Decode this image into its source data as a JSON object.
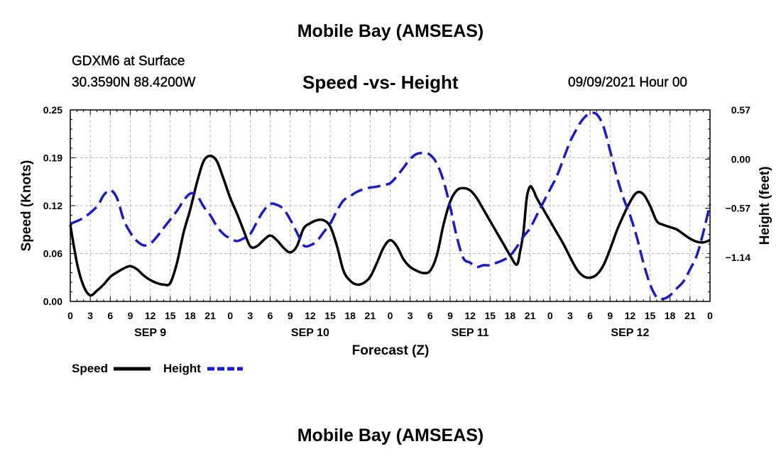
{
  "header": {
    "title": "Mobile Bay (AMSEAS)",
    "station": "GDXM6 at Surface",
    "coords": "30.3590N  88.4200W",
    "subtitle": "Speed -vs- Height",
    "datetime": "09/09/2021 Hour 00"
  },
  "footer": {
    "title": "Mobile Bay (AMSEAS)"
  },
  "chart_data": {
    "type": "line",
    "title": "Speed -vs- Height",
    "xlabel": "Forecast (Z)",
    "ylabel": "Speed (Knots)",
    "y2label": "Height (feet)",
    "x_unit": "forecast hour",
    "xlim": [
      0,
      96
    ],
    "ylim": [
      0,
      0.25
    ],
    "y2lim": [
      -1.65,
      0.57
    ],
    "grid": true,
    "legend_position": "bottom-left",
    "x_ticks": [
      {
        "h": 0,
        "label": "0"
      },
      {
        "h": 3,
        "label": "3"
      },
      {
        "h": 6,
        "label": "6"
      },
      {
        "h": 9,
        "label": "9"
      },
      {
        "h": 12,
        "label": "12"
      },
      {
        "h": 15,
        "label": "15"
      },
      {
        "h": 18,
        "label": "18"
      },
      {
        "h": 21,
        "label": "21"
      },
      {
        "h": 24,
        "label": "0"
      },
      {
        "h": 27,
        "label": "3"
      },
      {
        "h": 30,
        "label": "6"
      },
      {
        "h": 33,
        "label": "9"
      },
      {
        "h": 36,
        "label": "12"
      },
      {
        "h": 39,
        "label": "15"
      },
      {
        "h": 42,
        "label": "18"
      },
      {
        "h": 45,
        "label": "21"
      },
      {
        "h": 48,
        "label": "0"
      },
      {
        "h": 51,
        "label": "3"
      },
      {
        "h": 54,
        "label": "6"
      },
      {
        "h": 57,
        "label": "9"
      },
      {
        "h": 60,
        "label": "12"
      },
      {
        "h": 63,
        "label": "15"
      },
      {
        "h": 66,
        "label": "18"
      },
      {
        "h": 69,
        "label": "21"
      },
      {
        "h": 72,
        "label": "0"
      },
      {
        "h": 75,
        "label": "3"
      },
      {
        "h": 78,
        "label": "6"
      },
      {
        "h": 81,
        "label": "9"
      },
      {
        "h": 84,
        "label": "12"
      },
      {
        "h": 87,
        "label": "15"
      },
      {
        "h": 90,
        "label": "18"
      },
      {
        "h": 93,
        "label": "21"
      },
      {
        "h": 96,
        "label": "0"
      }
    ],
    "day_labels": [
      {
        "h": 12,
        "label": "SEP 9"
      },
      {
        "h": 36,
        "label": "SEP 10"
      },
      {
        "h": 60,
        "label": "SEP 11"
      },
      {
        "h": 84,
        "label": "SEP 12"
      }
    ],
    "y_ticks": [
      {
        "v": 0.0,
        "label": "0.00"
      },
      {
        "v": 0.0625,
        "label": "0.06"
      },
      {
        "v": 0.125,
        "label": "0.12"
      },
      {
        "v": 0.1875,
        "label": "0.19"
      },
      {
        "v": 0.25,
        "label": "0.25"
      }
    ],
    "y2_ticks": [
      {
        "v": 0.57,
        "label": "0.57"
      },
      {
        "v": 0.0,
        "label": "0.00"
      },
      {
        "v": -0.57,
        "label": "−0.57"
      },
      {
        "v": -1.14,
        "label": "−1.14"
      }
    ],
    "series": [
      {
        "name": "Speed",
        "axis": "left",
        "color": "#000000",
        "dash": "solid",
        "points": [
          [
            0,
            0.1
          ],
          [
            1,
            0.05
          ],
          [
            2,
            0.02
          ],
          [
            3,
            0.008
          ],
          [
            4,
            0.014
          ],
          [
            5,
            0.022
          ],
          [
            6,
            0.032
          ],
          [
            7,
            0.038
          ],
          [
            8,
            0.043
          ],
          [
            9,
            0.046
          ],
          [
            10,
            0.042
          ],
          [
            11,
            0.034
          ],
          [
            12,
            0.028
          ],
          [
            13,
            0.024
          ],
          [
            14,
            0.022
          ],
          [
            15,
            0.024
          ],
          [
            16,
            0.05
          ],
          [
            17,
            0.09
          ],
          [
            18,
            0.12
          ],
          [
            19,
            0.155
          ],
          [
            20,
            0.183
          ],
          [
            21,
            0.19
          ],
          [
            22,
            0.183
          ],
          [
            23,
            0.16
          ],
          [
            24,
            0.135
          ],
          [
            25,
            0.115
          ],
          [
            26,
            0.093
          ],
          [
            27,
            0.072
          ],
          [
            28,
            0.072
          ],
          [
            29,
            0.08
          ],
          [
            30,
            0.086
          ],
          [
            31,
            0.08
          ],
          [
            32,
            0.07
          ],
          [
            33,
            0.064
          ],
          [
            34,
            0.072
          ],
          [
            35,
            0.095
          ],
          [
            36,
            0.102
          ],
          [
            37,
            0.106
          ],
          [
            38,
            0.106
          ],
          [
            39,
            0.098
          ],
          [
            40,
            0.073
          ],
          [
            41,
            0.04
          ],
          [
            42,
            0.027
          ],
          [
            43,
            0.022
          ],
          [
            44,
            0.024
          ],
          [
            45,
            0.032
          ],
          [
            46,
            0.05
          ],
          [
            47,
            0.07
          ],
          [
            48,
            0.08
          ],
          [
            49,
            0.072
          ],
          [
            50,
            0.055
          ],
          [
            51,
            0.045
          ],
          [
            52,
            0.04
          ],
          [
            53,
            0.037
          ],
          [
            54,
            0.04
          ],
          [
            55,
            0.06
          ],
          [
            56,
            0.1
          ],
          [
            57,
            0.13
          ],
          [
            58,
            0.145
          ],
          [
            59,
            0.148
          ],
          [
            60,
            0.145
          ],
          [
            61,
            0.135
          ],
          [
            62,
            0.12
          ],
          [
            63,
            0.105
          ],
          [
            64,
            0.09
          ],
          [
            65,
            0.075
          ],
          [
            66,
            0.06
          ],
          [
            67,
            0.048
          ],
          [
            67.5,
            0.065
          ],
          [
            68,
            0.09
          ],
          [
            68.5,
            0.135
          ],
          [
            69,
            0.15
          ],
          [
            69.5,
            0.145
          ],
          [
            70,
            0.135
          ],
          [
            71,
            0.12
          ],
          [
            72,
            0.105
          ],
          [
            73,
            0.09
          ],
          [
            74,
            0.075
          ],
          [
            75,
            0.058
          ],
          [
            76,
            0.042
          ],
          [
            77,
            0.033
          ],
          [
            78,
            0.031
          ],
          [
            79,
            0.035
          ],
          [
            80,
            0.047
          ],
          [
            81,
            0.068
          ],
          [
            82,
            0.092
          ],
          [
            83,
            0.112
          ],
          [
            84,
            0.13
          ],
          [
            85,
            0.142
          ],
          [
            86,
            0.14
          ],
          [
            87,
            0.125
          ],
          [
            88,
            0.105
          ],
          [
            89,
            0.1
          ],
          [
            90,
            0.097
          ],
          [
            91,
            0.094
          ],
          [
            92,
            0.088
          ],
          [
            93,
            0.082
          ],
          [
            94,
            0.078
          ],
          [
            95,
            0.077
          ],
          [
            96,
            0.08
          ]
        ]
      },
      {
        "name": "Height",
        "axis": "right",
        "color": "#1a1acc",
        "dash": "dashed",
        "points": [
          [
            0,
            -0.75
          ],
          [
            2,
            -0.68
          ],
          [
            4,
            -0.55
          ],
          [
            5,
            -0.42
          ],
          [
            6,
            -0.36
          ],
          [
            7,
            -0.45
          ],
          [
            8,
            -0.7
          ],
          [
            9,
            -0.85
          ],
          [
            10,
            -0.95
          ],
          [
            11,
            -1.0
          ],
          [
            12,
            -0.98
          ],
          [
            13,
            -0.9
          ],
          [
            14,
            -0.8
          ],
          [
            16,
            -0.6
          ],
          [
            17,
            -0.48
          ],
          [
            18,
            -0.4
          ],
          [
            19,
            -0.42
          ],
          [
            20,
            -0.55
          ],
          [
            21,
            -0.65
          ],
          [
            22,
            -0.78
          ],
          [
            23,
            -0.87
          ],
          [
            24,
            -0.92
          ],
          [
            25,
            -0.95
          ],
          [
            26,
            -0.92
          ],
          [
            27,
            -0.87
          ],
          [
            28,
            -0.73
          ],
          [
            29,
            -0.6
          ],
          [
            30,
            -0.52
          ],
          [
            31,
            -0.53
          ],
          [
            32,
            -0.58
          ],
          [
            33,
            -0.7
          ],
          [
            34,
            -0.85
          ],
          [
            35,
            -1.0
          ],
          [
            36,
            -1.0
          ],
          [
            37,
            -0.95
          ],
          [
            38,
            -0.85
          ],
          [
            39,
            -0.75
          ],
          [
            40,
            -0.6
          ],
          [
            41,
            -0.48
          ],
          [
            42,
            -0.43
          ],
          [
            43,
            -0.38
          ],
          [
            44,
            -0.35
          ],
          [
            45,
            -0.33
          ],
          [
            46,
            -0.32
          ],
          [
            47,
            -0.3
          ],
          [
            48,
            -0.28
          ],
          [
            49,
            -0.2
          ],
          [
            50,
            -0.1
          ],
          [
            51,
            0.0
          ],
          [
            52,
            0.06
          ],
          [
            53,
            0.07
          ],
          [
            54,
            0.05
          ],
          [
            55,
            -0.05
          ],
          [
            56,
            -0.25
          ],
          [
            57,
            -0.55
          ],
          [
            58,
            -0.9
          ],
          [
            59,
            -1.15
          ],
          [
            60,
            -1.2
          ],
          [
            61,
            -1.25
          ],
          [
            62,
            -1.23
          ],
          [
            63,
            -1.23
          ],
          [
            64,
            -1.2
          ],
          [
            65,
            -1.17
          ],
          [
            66,
            -1.12
          ],
          [
            67,
            -1.02
          ],
          [
            68,
            -0.9
          ],
          [
            69,
            -0.8
          ],
          [
            70,
            -0.65
          ],
          [
            71,
            -0.5
          ],
          [
            72,
            -0.35
          ],
          [
            73,
            -0.2
          ],
          [
            74,
            0.0
          ],
          [
            75,
            0.2
          ],
          [
            76,
            0.35
          ],
          [
            77,
            0.47
          ],
          [
            78,
            0.53
          ],
          [
            79,
            0.52
          ],
          [
            80,
            0.38
          ],
          [
            81,
            0.1
          ],
          [
            82,
            -0.2
          ],
          [
            83,
            -0.45
          ],
          [
            84,
            -0.65
          ],
          [
            85,
            -0.9
          ],
          [
            86,
            -1.2
          ],
          [
            87,
            -1.45
          ],
          [
            88,
            -1.6
          ],
          [
            89,
            -1.62
          ],
          [
            90,
            -1.58
          ],
          [
            91,
            -1.5
          ],
          [
            92,
            -1.42
          ],
          [
            93,
            -1.28
          ],
          [
            94,
            -1.12
          ],
          [
            95,
            -0.85
          ],
          [
            96,
            -0.52
          ]
        ]
      }
    ]
  },
  "legend": {
    "speed_label": "Speed",
    "height_label": "Height"
  }
}
